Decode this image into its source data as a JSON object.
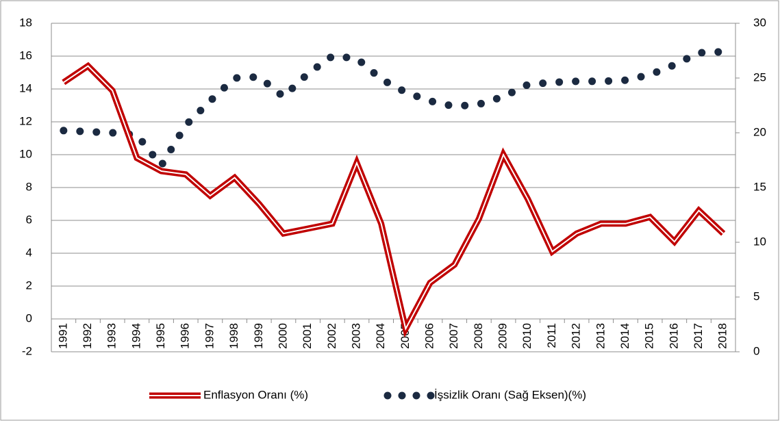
{
  "chart_data": {
    "type": "line",
    "categories": [
      "1991",
      "1992",
      "1993",
      "1994",
      "1995",
      "1996",
      "1997",
      "1998",
      "1999",
      "2000",
      "2001",
      "2002",
      "2003",
      "2004",
      "2005",
      "2006",
      "2007",
      "2008",
      "2009",
      "2010",
      "2011",
      "2012",
      "2013",
      "2014",
      "2015",
      "2016",
      "2017",
      "2018"
    ],
    "series": [
      {
        "name": "Enflasyon Oranı (%)",
        "color": "#c00000",
        "values": [
          14.4,
          15.4,
          13.9,
          9.8,
          9.0,
          8.8,
          7.5,
          8.6,
          7.0,
          5.2,
          5.5,
          5.8,
          9.5,
          5.8,
          -0.6,
          2.2,
          3.3,
          6.1,
          10.0,
          7.3,
          4.1,
          5.2,
          5.8,
          5.8,
          6.2,
          4.7,
          6.6,
          5.2
        ]
      },
      {
        "name": "İşsizlik Oranı (Sağ Eksen)(%)",
        "color": "#1b2a41",
        "axis": "y2",
        "values": [
          20.2,
          20.1,
          20.0,
          19.8,
          17.0,
          20.7,
          22.9,
          25.0,
          25.1,
          23.3,
          25.4,
          27.0,
          26.8,
          24.9,
          23.7,
          22.9,
          22.4,
          22.6,
          23.3,
          24.4,
          24.6,
          24.7,
          24.7,
          24.8,
          25.3,
          26.2,
          27.3,
          27.4
        ]
      }
    ],
    "ylim": [
      -2,
      18
    ],
    "yticks": [
      -2,
      0,
      2,
      4,
      6,
      8,
      10,
      12,
      14,
      16,
      18
    ],
    "y2lim": [
      0,
      30
    ],
    "y2ticks": [
      0,
      5,
      10,
      15,
      20,
      25,
      30
    ],
    "grid": true,
    "legend": "bottom"
  }
}
